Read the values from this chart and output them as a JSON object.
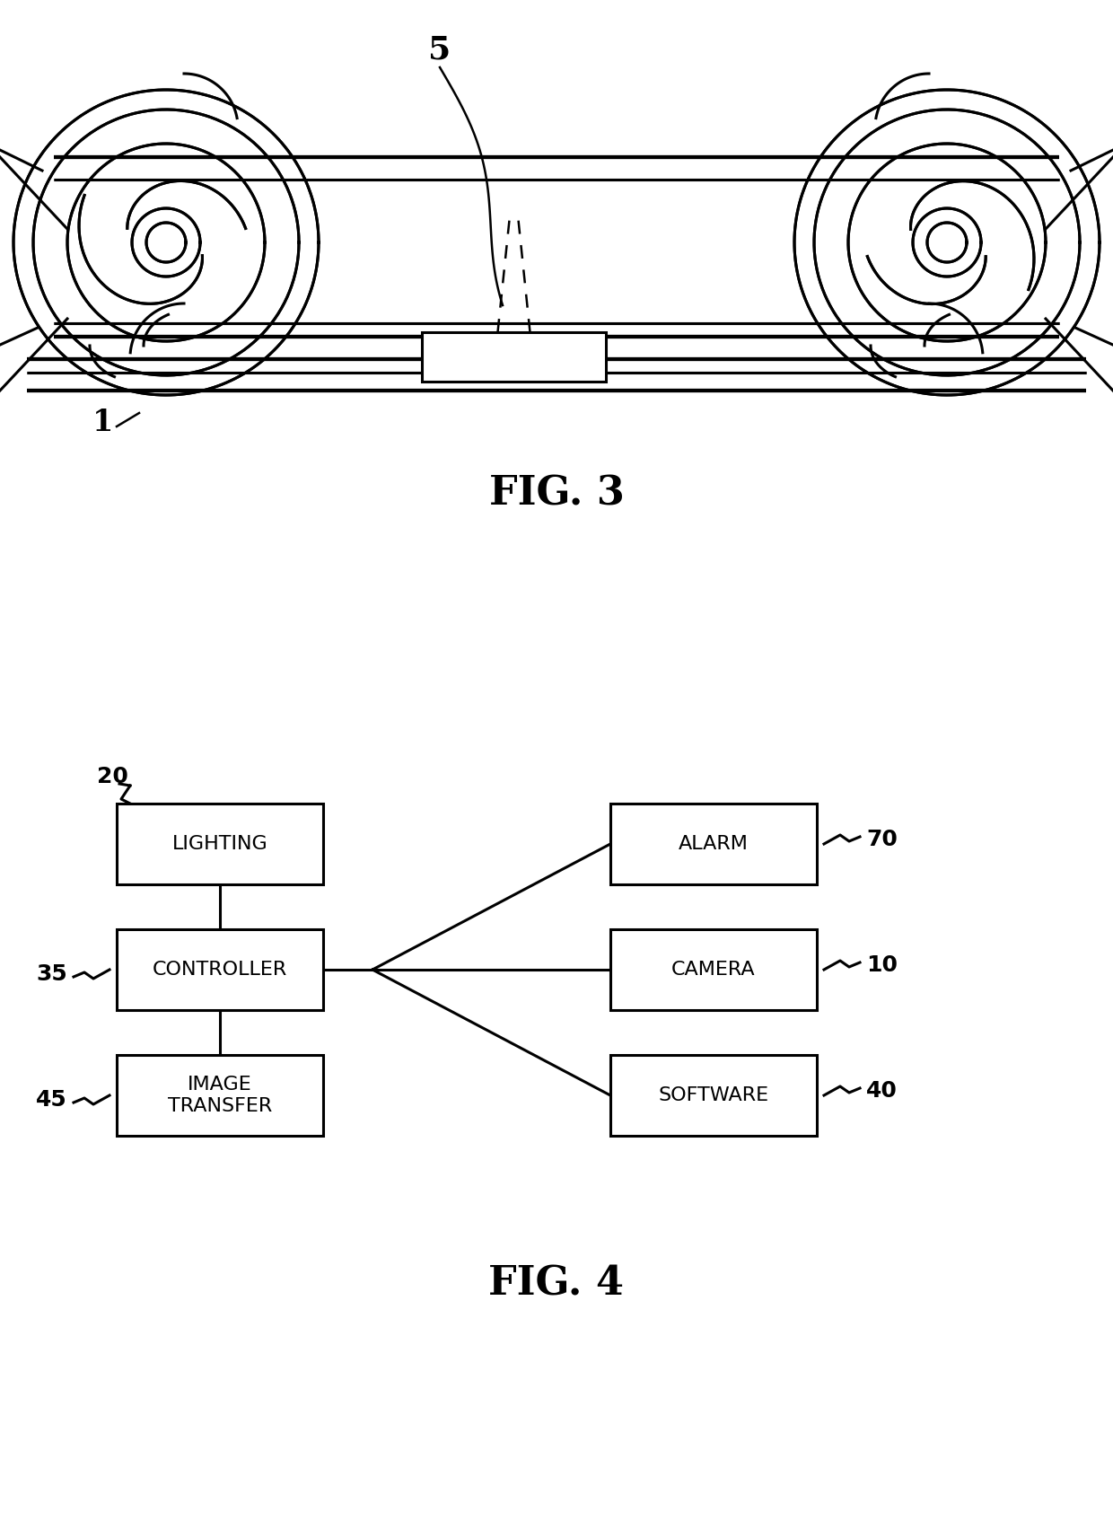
{
  "bg_color": "#ffffff",
  "line_color": "#000000",
  "fig3_title": "FIG. 3",
  "fig4_title": "FIG. 4",
  "label_5": "5",
  "label_1": "1",
  "fig4_boxes": [
    {
      "label": "LIGHTING",
      "col": "left",
      "row": 0,
      "ref": "20",
      "ref_side": "top_left"
    },
    {
      "label": "CONTROLLER",
      "col": "left",
      "row": 1,
      "ref": "35",
      "ref_side": "left"
    },
    {
      "label": "IMAGE\nTRANSFER",
      "col": "left",
      "row": 2,
      "ref": "45",
      "ref_side": "left"
    },
    {
      "label": "ALARM",
      "col": "right",
      "row": 0,
      "ref": "70",
      "ref_side": "right"
    },
    {
      "label": "CAMERA",
      "col": "right",
      "row": 1,
      "ref": "10",
      "ref_side": "right"
    },
    {
      "label": "SOFTWARE",
      "col": "right",
      "row": 2,
      "ref": "40",
      "ref_side": "right"
    }
  ]
}
